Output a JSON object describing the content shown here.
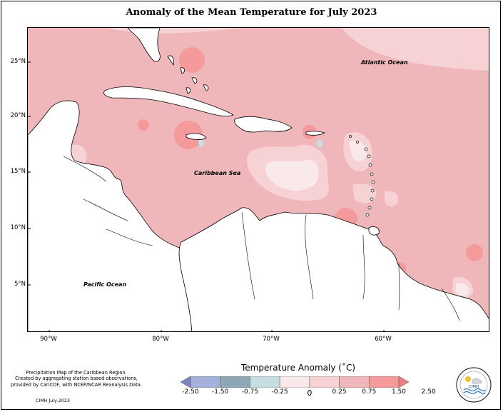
{
  "title": "Anomaly of the Mean Temperature for July 2023",
  "map": {
    "labels": {
      "atlantic": "Atlantic Ocean",
      "caribbean": "Caribbean Sea",
      "pacific": "Pacific Ocean"
    },
    "lat_ticks": [
      "25°N",
      "20°N",
      "15°N",
      "10°N",
      "5°N"
    ],
    "lon_ticks": [
      "90°W",
      "80°W",
      "70°W",
      "60°W"
    ]
  },
  "legend": {
    "title": "Temperature Anomaly (˚C)",
    "bins": [
      {
        "color": "#7d86c2"
      },
      {
        "color": "#a3b0dc"
      },
      {
        "color": "#8ea7b7"
      },
      {
        "color": "#c6dde1"
      },
      {
        "color": "#fae9ea"
      },
      {
        "color": "#f6d2d4"
      },
      {
        "color": "#efb7b9"
      },
      {
        "color": "#f49a9b"
      },
      {
        "color": "#ef7e80"
      }
    ],
    "labels": [
      "-2.50",
      "-1.50",
      "-0.75",
      "-0.25",
      "0",
      "0.25",
      "0.75",
      "1.50",
      "2.50"
    ]
  },
  "credit": {
    "lines": [
      "Precipitation Map of the Caribbean Region.",
      "Created by aggregating station based observations,",
      "provided by CariCOF, with NCEP/NCAR Reanalysis Data."
    ],
    "date": "CIMH July-2023"
  },
  "logo": {
    "text": "CIMH"
  }
}
